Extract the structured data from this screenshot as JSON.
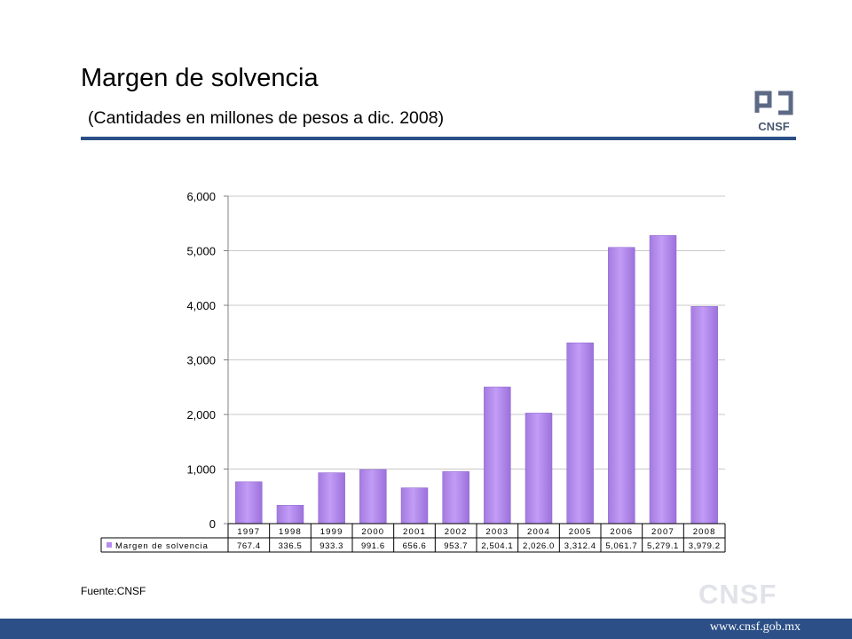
{
  "slide": {
    "title": "Margen de solvencia",
    "subtitle": "(Cantidades en millones de pesos a dic. 2008)",
    "source": "Fuente:CNSF",
    "watermark": "CNSF",
    "footer_url": "www.cnsf.gob.mx",
    "logo_text": "CNSF",
    "colors": {
      "accent": "#2b4f86",
      "bar": "#b68cef",
      "bar_dark": "#9a6fd6"
    }
  },
  "chart_data": {
    "type": "bar",
    "categories": [
      "1997",
      "1998",
      "1999",
      "2000",
      "2001",
      "2002",
      "2003",
      "2004",
      "2005",
      "2006",
      "2007",
      "2008"
    ],
    "series": [
      {
        "name": "Margen de solvencia",
        "values": [
          767.4,
          336.5,
          933.3,
          991.6,
          656.6,
          953.7,
          2504.1,
          2026.0,
          3312.4,
          5061.7,
          5279.1,
          3979.2
        ]
      }
    ],
    "value_labels": [
      "767.4",
      "336.5",
      "933.3",
      "991.6",
      "656.6",
      "953.7",
      "2,504.1",
      "2,026.0",
      "3,312.4",
      "5,061.7",
      "5,279.1",
      "3,979.2"
    ],
    "y_ticks": [
      "0",
      "1,000",
      "2,000",
      "3,000",
      "4,000",
      "5,000",
      "6,000"
    ],
    "ylim": [
      0,
      6000
    ],
    "grid": true,
    "legend": "data-table-left"
  }
}
